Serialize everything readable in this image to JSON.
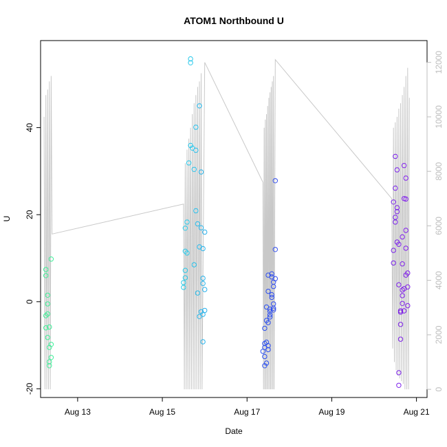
{
  "chart_data": {
    "type": "scatter",
    "title": "ATOM1 Northbound U",
    "xlabel": "Date",
    "ylabel": "U",
    "x_ticks": [
      "Aug 13",
      "Aug 15",
      "Aug 17",
      "Aug 19",
      "Aug 21"
    ],
    "xlim": [
      "Aug 12 03:00",
      "Aug 21 06:00"
    ],
    "ylim": [
      -22,
      60
    ],
    "y_ticks": [
      -20,
      0,
      20,
      40
    ],
    "y2lim": [
      -300,
      12800
    ],
    "y2_ticks": [
      0,
      2000,
      4000,
      6000,
      8000,
      10000,
      12000
    ],
    "grid": false,
    "point_color_scale": "time: cyan-green → blue → violet",
    "points": [
      {
        "x": "Aug 12 06:00",
        "y": 7.4
      },
      {
        "x": "Aug 12 06:00",
        "y": 6.0
      },
      {
        "x": "Aug 12 07:00",
        "y": 1.5
      },
      {
        "x": "Aug 12 07:00",
        "y": -0.5
      },
      {
        "x": "Aug 12 07:00",
        "y": -2.8
      },
      {
        "x": "Aug 12 06:00",
        "y": -3.2
      },
      {
        "x": "Aug 12 06:00",
        "y": -6.0
      },
      {
        "x": "Aug 12 08:00",
        "y": -5.8
      },
      {
        "x": "Aug 12 07:00",
        "y": -8.2
      },
      {
        "x": "Aug 12 08:00",
        "y": -10.5
      },
      {
        "x": "Aug 12 09:00",
        "y": -9.8
      },
      {
        "x": "Aug 12 09:00",
        "y": -12.8
      },
      {
        "x": "Aug 12 08:00",
        "y": -13.8
      },
      {
        "x": "Aug 12 08:00",
        "y": -14.7
      },
      {
        "x": "Aug 12 09:00",
        "y": 9.8
      },
      {
        "x": "Aug 15 13:00",
        "y": 11.6
      },
      {
        "x": "Aug 15 13:00",
        "y": 7.2
      },
      {
        "x": "Aug 15 13:00",
        "y": 5.5
      },
      {
        "x": "Aug 15 12:00",
        "y": 4.4
      },
      {
        "x": "Aug 15 12:00",
        "y": 3.3
      },
      {
        "x": "Aug 15 14:00",
        "y": 11.2
      },
      {
        "x": "Aug 15 14:00",
        "y": 18.3
      },
      {
        "x": "Aug 15 13:00",
        "y": 16.9
      },
      {
        "x": "Aug 15 15:00",
        "y": 31.9
      },
      {
        "x": "Aug 15 16:00",
        "y": 35.9
      },
      {
        "x": "Aug 15 17:00",
        "y": 35.3
      },
      {
        "x": "Aug 15 18:00",
        "y": 30.4
      },
      {
        "x": "Aug 15 18:00",
        "y": 8.5
      },
      {
        "x": "Aug 15 19:00",
        "y": 34.8
      },
      {
        "x": "Aug 15 19:00",
        "y": 40.1
      },
      {
        "x": "Aug 15 19:00",
        "y": 20.9
      },
      {
        "x": "Aug 15 20:00",
        "y": 2.0
      },
      {
        "x": "Aug 15 20:00",
        "y": 17.9
      },
      {
        "x": "Aug 15 21:00",
        "y": 12.6
      },
      {
        "x": "Aug 15 21:00",
        "y": 45.0
      },
      {
        "x": "Aug 15 21:00",
        "y": -3.4
      },
      {
        "x": "Aug 15 22:00",
        "y": -2.3
      },
      {
        "x": "Aug 15 22:00",
        "y": 17.0
      },
      {
        "x": "Aug 15 22:00",
        "y": 29.8
      },
      {
        "x": "Aug 15 23:00",
        "y": 12.2
      },
      {
        "x": "Aug 15 23:00",
        "y": 5.4
      },
      {
        "x": "Aug 15 23:00",
        "y": 4.2
      },
      {
        "x": "Aug 15 23:00",
        "y": -2.9
      },
      {
        "x": "Aug 16 00:00",
        "y": 16.0
      },
      {
        "x": "Aug 16 00:00",
        "y": 2.8
      },
      {
        "x": "Aug 16 00:00",
        "y": -2.0
      },
      {
        "x": "Aug 15 23:00",
        "y": -9.2
      },
      {
        "x": "Aug 15 16:00",
        "y": 55.8
      },
      {
        "x": "Aug 15 16:00",
        "y": 54.9
      },
      {
        "x": "Aug 17 10:00",
        "y": -6.1
      },
      {
        "x": "Aug 17 10:00",
        "y": -9.6
      },
      {
        "x": "Aug 17 10:00",
        "y": -10.5
      },
      {
        "x": "Aug 17 09:00",
        "y": -11.4
      },
      {
        "x": "Aug 17 10:00",
        "y": -12.6
      },
      {
        "x": "Aug 17 10:00",
        "y": -14.7
      },
      {
        "x": "Aug 17 11:00",
        "y": -14.1
      },
      {
        "x": "Aug 17 11:00",
        "y": -9.3
      },
      {
        "x": "Aug 17 11:00",
        "y": -1.2
      },
      {
        "x": "Aug 17 11:00",
        "y": -4.3
      },
      {
        "x": "Aug 17 12:00",
        "y": -4.8
      },
      {
        "x": "Aug 17 12:00",
        "y": -10.1
      },
      {
        "x": "Aug 17 12:00",
        "y": -11.0
      },
      {
        "x": "Aug 17 12:00",
        "y": 2.4
      },
      {
        "x": "Aug 17 12:00",
        "y": 6.1
      },
      {
        "x": "Aug 17 13:00",
        "y": -2.2
      },
      {
        "x": "Aug 17 13:00",
        "y": -3.0
      },
      {
        "x": "Aug 17 13:00",
        "y": -3.5
      },
      {
        "x": "Aug 17 13:00",
        "y": -1.7
      },
      {
        "x": "Aug 17 14:00",
        "y": 1.0
      },
      {
        "x": "Aug 17 14:00",
        "y": 1.6
      },
      {
        "x": "Aug 17 14:00",
        "y": 6.4
      },
      {
        "x": "Aug 17 14:00",
        "y": 5.7
      },
      {
        "x": "Aug 17 15:00",
        "y": 3.5
      },
      {
        "x": "Aug 17 15:00",
        "y": 4.5
      },
      {
        "x": "Aug 17 15:00",
        "y": -0.5
      },
      {
        "x": "Aug 17 15:00",
        "y": -1.5
      },
      {
        "x": "Aug 17 15:00",
        "y": -1.9
      },
      {
        "x": "Aug 17 16:00",
        "y": 12.0
      },
      {
        "x": "Aug 17 16:00",
        "y": 27.8
      },
      {
        "x": "Aug 17 16:00",
        "y": 5.3
      },
      {
        "x": "Aug 20 11:00",
        "y": 11.8
      },
      {
        "x": "Aug 20 11:00",
        "y": 8.9
      },
      {
        "x": "Aug 20 11:00",
        "y": 22.9
      },
      {
        "x": "Aug 20 12:00",
        "y": 18.3
      },
      {
        "x": "Aug 20 12:00",
        "y": 19.4
      },
      {
        "x": "Aug 20 12:00",
        "y": 26.1
      },
      {
        "x": "Aug 20 12:00",
        "y": 33.4
      },
      {
        "x": "Aug 20 13:00",
        "y": 30.3
      },
      {
        "x": "Aug 20 13:00",
        "y": 21.6
      },
      {
        "x": "Aug 20 13:00",
        "y": 20.7
      },
      {
        "x": "Aug 20 13:00",
        "y": 13.7
      },
      {
        "x": "Aug 20 14:00",
        "y": 13.2
      },
      {
        "x": "Aug 20 14:00",
        "y": 3.9
      },
      {
        "x": "Aug 20 14:00",
        "y": -16.3
      },
      {
        "x": "Aug 20 14:00",
        "y": -19.2
      },
      {
        "x": "Aug 20 15:00",
        "y": -8.6
      },
      {
        "x": "Aug 20 15:00",
        "y": -5.2
      },
      {
        "x": "Aug 20 15:00",
        "y": -2.4
      },
      {
        "x": "Aug 20 15:00",
        "y": -2.1
      },
      {
        "x": "Aug 20 16:00",
        "y": 1.4
      },
      {
        "x": "Aug 20 16:00",
        "y": 2.7
      },
      {
        "x": "Aug 20 16:00",
        "y": -0.4
      },
      {
        "x": "Aug 20 16:00",
        "y": 8.7
      },
      {
        "x": "Aug 20 16:00",
        "y": 14.9
      },
      {
        "x": "Aug 20 17:00",
        "y": 31.3
      },
      {
        "x": "Aug 20 17:00",
        "y": 23.7
      },
      {
        "x": "Aug 20 17:00",
        "y": 3.0
      },
      {
        "x": "Aug 20 18:00",
        "y": 23.6
      },
      {
        "x": "Aug 20 18:00",
        "y": 28.4
      },
      {
        "x": "Aug 20 18:00",
        "y": 16.4
      },
      {
        "x": "Aug 20 18:00",
        "y": 12.3
      },
      {
        "x": "Aug 20 18:00",
        "y": 6.1
      },
      {
        "x": "Aug 20 19:00",
        "y": 3.4
      },
      {
        "x": "Aug 20 19:00",
        "y": 6.6
      },
      {
        "x": "Aug 20 19:00",
        "y": -0.9
      },
      {
        "x": "Aug 20 17:00",
        "y": -2.1
      }
    ],
    "secondary_line": [
      {
        "x": "Aug 12 05:00",
        "y2": 10000
      },
      {
        "x": "Aug 12 05:30",
        "y2": 0
      },
      {
        "x": "Aug 12 06:00",
        "y2": 10800
      },
      {
        "x": "Aug 12 06:30",
        "y2": 0
      },
      {
        "x": "Aug 12 07:00",
        "y2": 11000
      },
      {
        "x": "Aug 12 07:30",
        "y2": 0
      },
      {
        "x": "Aug 12 08:00",
        "y2": 11300
      },
      {
        "x": "Aug 12 08:30",
        "y2": 0
      },
      {
        "x": "Aug 12 09:00",
        "y2": 11500
      },
      {
        "x": "Aug 12 09:30",
        "y2": 5700
      },
      {
        "x": "Aug 15 12:00",
        "y2": 6800
      },
      {
        "x": "Aug 15 12:30",
        "y2": 0
      },
      {
        "x": "Aug 15 13:00",
        "y2": 8300
      },
      {
        "x": "Aug 15 13:30",
        "y2": 0
      },
      {
        "x": "Aug 15 14:00",
        "y2": 8800
      },
      {
        "x": "Aug 15 14:30",
        "y2": 0
      },
      {
        "x": "Aug 15 15:00",
        "y2": 9200
      },
      {
        "x": "Aug 15 15:30",
        "y2": 0
      },
      {
        "x": "Aug 15 16:00",
        "y2": 9600
      },
      {
        "x": "Aug 15 16:30",
        "y2": 0
      },
      {
        "x": "Aug 15 17:00",
        "y2": 10100
      },
      {
        "x": "Aug 15 17:30",
        "y2": 0
      },
      {
        "x": "Aug 15 18:00",
        "y2": 10500
      },
      {
        "x": "Aug 15 18:30",
        "y2": 0
      },
      {
        "x": "Aug 15 19:00",
        "y2": 10800
      },
      {
        "x": "Aug 15 19:30",
        "y2": 0
      },
      {
        "x": "Aug 15 20:00",
        "y2": 11100
      },
      {
        "x": "Aug 15 20:30",
        "y2": 0
      },
      {
        "x": "Aug 15 21:00",
        "y2": 11300
      },
      {
        "x": "Aug 15 21:30",
        "y2": 0
      },
      {
        "x": "Aug 15 22:00",
        "y2": 11600
      },
      {
        "x": "Aug 15 22:30",
        "y2": 0
      },
      {
        "x": "Aug 16 00:00",
        "y2": 12000
      },
      {
        "x": "Aug 17 09:00",
        "y2": 7600
      },
      {
        "x": "Aug 17 09:20",
        "y2": 0
      },
      {
        "x": "Aug 17 09:40",
        "y2": 9600
      },
      {
        "x": "Aug 17 10:00",
        "y2": 0
      },
      {
        "x": "Aug 17 10:20",
        "y2": 9900
      },
      {
        "x": "Aug 17 10:40",
        "y2": 0
      },
      {
        "x": "Aug 17 11:00",
        "y2": 10100
      },
      {
        "x": "Aug 17 11:20",
        "y2": 0
      },
      {
        "x": "Aug 17 11:40",
        "y2": 10400
      },
      {
        "x": "Aug 17 12:00",
        "y2": 0
      },
      {
        "x": "Aug 17 12:20",
        "y2": 10700
      },
      {
        "x": "Aug 17 12:40",
        "y2": 0
      },
      {
        "x": "Aug 17 13:00",
        "y2": 10900
      },
      {
        "x": "Aug 17 13:20",
        "y2": 0
      },
      {
        "x": "Aug 17 13:40",
        "y2": 11100
      },
      {
        "x": "Aug 17 14:00",
        "y2": 0
      },
      {
        "x": "Aug 17 14:20",
        "y2": 11300
      },
      {
        "x": "Aug 17 14:40",
        "y2": 0
      },
      {
        "x": "Aug 17 15:00",
        "y2": 11500
      },
      {
        "x": "Aug 17 15:20",
        "y2": 0
      },
      {
        "x": "Aug 17 16:00",
        "y2": 12100
      },
      {
        "x": "Aug 20 10:00",
        "y2": 7000
      },
      {
        "x": "Aug 20 10:30",
        "y2": 1500
      },
      {
        "x": "Aug 20 11:00",
        "y2": 9600
      },
      {
        "x": "Aug 20 11:30",
        "y2": 1000
      },
      {
        "x": "Aug 20 12:00",
        "y2": 9800
      },
      {
        "x": "Aug 20 12:30",
        "y2": 700
      },
      {
        "x": "Aug 20 13:00",
        "y2": 10000
      },
      {
        "x": "Aug 20 13:30",
        "y2": 500
      },
      {
        "x": "Aug 20 14:00",
        "y2": 10300
      },
      {
        "x": "Aug 20 14:30",
        "y2": 400
      },
      {
        "x": "Aug 20 15:00",
        "y2": 10500
      },
      {
        "x": "Aug 20 15:30",
        "y2": 300
      },
      {
        "x": "Aug 20 16:00",
        "y2": 10800
      },
      {
        "x": "Aug 20 16:30",
        "y2": 200
      },
      {
        "x": "Aug 20 17:00",
        "y2": 11100
      },
      {
        "x": "Aug 20 17:30",
        "y2": 0
      },
      {
        "x": "Aug 20 18:00",
        "y2": 11500
      },
      {
        "x": "Aug 20 18:30",
        "y2": 0
      },
      {
        "x": "Aug 20 19:00",
        "y2": 11800
      },
      {
        "x": "Aug 20 19:30",
        "y2": 0
      },
      {
        "x": "Aug 20 20:00",
        "y2": 10700
      }
    ]
  }
}
